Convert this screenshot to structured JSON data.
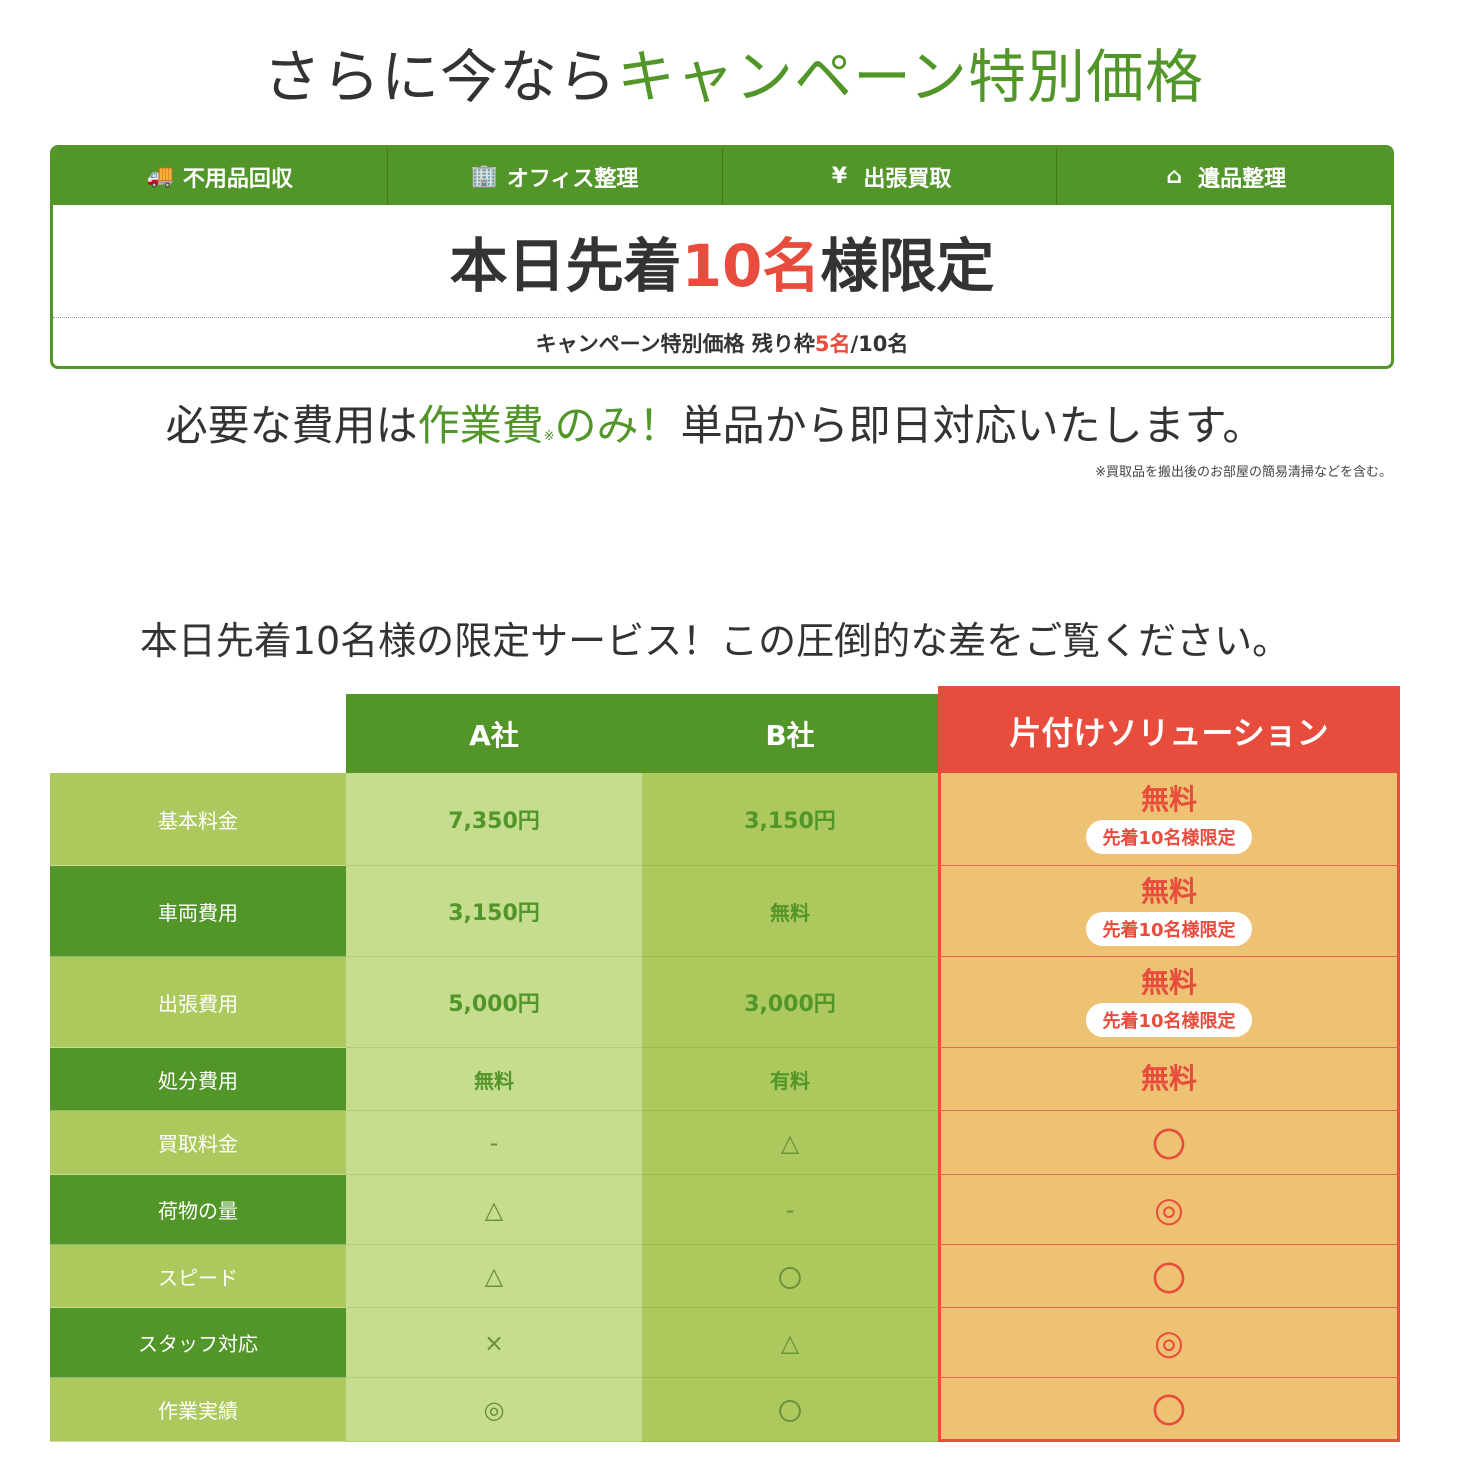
{
  "headline": {
    "prefix": "さらに今なら",
    "highlight": "キャンペーン特別価格",
    "highlight_color": "#52962a"
  },
  "campaign": {
    "tabs": [
      {
        "icon": "truck-icon",
        "glyph": "🚚",
        "label": "不用品回収"
      },
      {
        "icon": "building-icon",
        "glyph": "🏢",
        "label": "オフィス整理"
      },
      {
        "icon": "yen-icon",
        "glyph": "¥",
        "label": "出張買取"
      },
      {
        "icon": "home-icon",
        "glyph": "⌂",
        "label": "遺品整理"
      }
    ],
    "limited": {
      "before": "本日先着",
      "count": "10名",
      "after": "様限定"
    },
    "remaining": {
      "label": "キャンペーン特別価格 残り枠 ",
      "left": "5名",
      "total": "/10名"
    }
  },
  "cost_line": {
    "before": "必要な費用は",
    "highlight": "作業費",
    "mark": "※",
    "highlight2": "のみ！",
    "after": "単品から即日対応いたします。"
  },
  "footnote": "※買取品を搬出後のお部屋の簡易清掃などを含む。",
  "section_title": "本日先着10名様の限定サービス！この圧倒的な差をご覧ください。",
  "comparison": {
    "headers": [
      "A社",
      "B社",
      "片付けソリューション"
    ],
    "pill_label": "先着10名様限定",
    "rows": [
      {
        "label": "基本料金",
        "a": "7,350円",
        "b": "3,150円",
        "s": "無料",
        "pill": true
      },
      {
        "label": "車両費用",
        "a": "3,150円",
        "b": "無料",
        "s": "無料",
        "pill": true
      },
      {
        "label": "出張費用",
        "a": "5,000円",
        "b": "3,000円",
        "s": "無料",
        "pill": true
      },
      {
        "label": "処分費用",
        "a": "無料",
        "b": "有料",
        "s": "無料",
        "pill": false
      },
      {
        "label": "買取料金",
        "a": "-",
        "b": "△",
        "s": "〇",
        "pill": false
      },
      {
        "label": "荷物の量",
        "a": "△",
        "b": "-",
        "s": "◎",
        "pill": false
      },
      {
        "label": "スピード",
        "a": "△",
        "b": "〇",
        "s": "〇",
        "pill": false
      },
      {
        "label": "スタッフ対応",
        "a": "×",
        "b": "△",
        "s": "◎",
        "pill": false
      },
      {
        "label": "作業実績",
        "a": "◎",
        "b": "〇",
        "s": "〇",
        "pill": false
      }
    ],
    "colors": {
      "green": "#52962a",
      "light_green": "#adc95e",
      "pale_green": "#c6dc8f",
      "red": "#e84c3d",
      "orange": "#edc272"
    }
  }
}
